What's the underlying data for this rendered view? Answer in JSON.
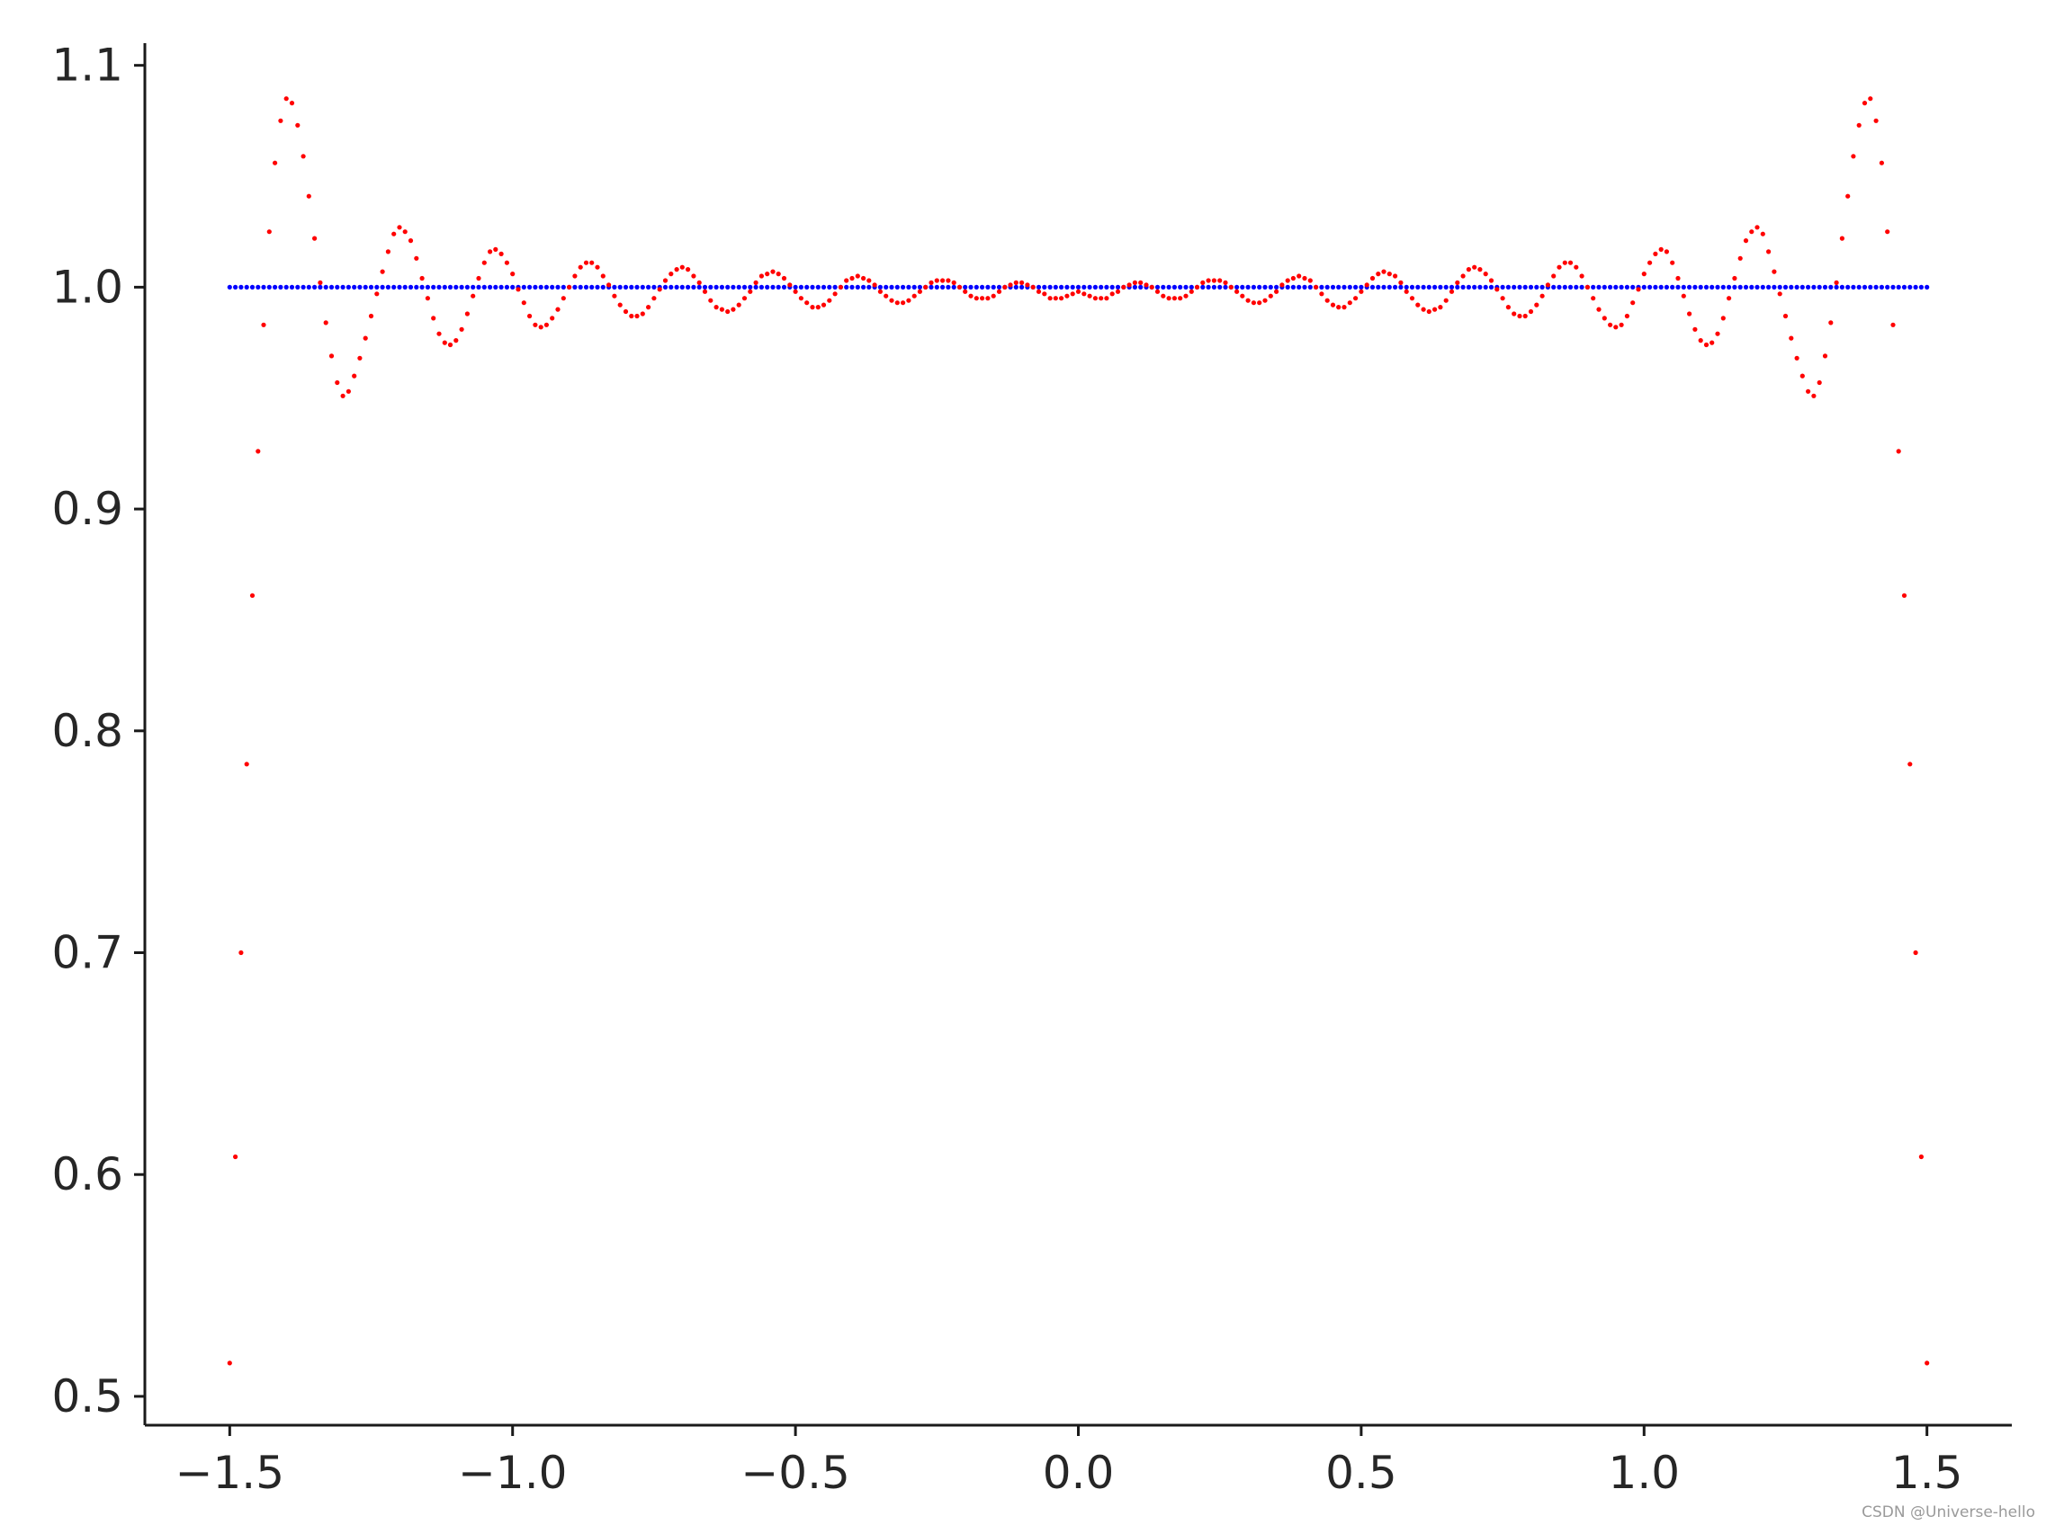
{
  "chart_data": {
    "type": "scatter",
    "title": "",
    "xlabel": "",
    "ylabel": "",
    "xlim": [
      -1.65,
      1.65
    ],
    "ylim": [
      0.487,
      1.11
    ],
    "xticks": [
      "−1.5",
      "−1.0",
      "−0.5",
      "0.0",
      "0.5",
      "1.0",
      "1.5"
    ],
    "xtick_values": [
      -1.5,
      -1.0,
      -0.5,
      0.0,
      0.5,
      1.0,
      1.5
    ],
    "yticks": [
      "0.5",
      "0.6",
      "0.7",
      "0.8",
      "0.9",
      "1.0",
      "1.1"
    ],
    "ytick_values": [
      0.5,
      0.6,
      0.7,
      0.8,
      0.9,
      1.0,
      1.1
    ],
    "grid": false,
    "legend": "none",
    "series": [
      {
        "color": "#0000ff",
        "marker": "point",
        "x_range": [
          -1.5,
          1.5
        ],
        "n_points": 301,
        "y_constant": 1.0
      },
      {
        "color": "#ff0000",
        "marker": "point",
        "x": [
          -1.5,
          -1.49,
          -1.48,
          -1.47,
          -1.46,
          -1.45,
          -1.44,
          -1.43,
          -1.42,
          -1.41,
          -1.4,
          -1.39,
          -1.38,
          -1.37,
          -1.36,
          -1.35,
          -1.34,
          -1.33,
          -1.32,
          -1.31,
          -1.3,
          -1.29,
          -1.28,
          -1.27,
          -1.26,
          -1.25,
          -1.24,
          -1.23,
          -1.22,
          -1.21,
          -1.2,
          -1.19,
          -1.18,
          -1.17,
          -1.16,
          -1.15,
          -1.14,
          -1.13,
          -1.12,
          -1.11,
          -1.1,
          -1.09,
          -1.08,
          -1.07,
          -1.06,
          -1.05,
          -1.04,
          -1.03,
          -1.02,
          -1.01,
          -1.0,
          -0.99,
          -0.98,
          -0.97,
          -0.96,
          -0.95,
          -0.94,
          -0.93,
          -0.92,
          -0.91,
          -0.9,
          -0.89,
          -0.88,
          -0.87,
          -0.86,
          -0.85,
          -0.84,
          -0.83,
          -0.82,
          -0.81,
          -0.8,
          -0.79,
          -0.78,
          -0.77,
          -0.76,
          -0.75,
          -0.74,
          -0.73,
          -0.72,
          -0.71,
          -0.7,
          -0.69,
          -0.68,
          -0.67,
          -0.66,
          -0.65,
          -0.64,
          -0.63,
          -0.62,
          -0.61,
          -0.6,
          -0.59,
          -0.58,
          -0.57,
          -0.56,
          -0.55,
          -0.54,
          -0.53,
          -0.52,
          -0.51,
          -0.5,
          -0.49,
          -0.48,
          -0.47,
          -0.46,
          -0.45,
          -0.44,
          -0.43,
          -0.42,
          -0.41,
          -0.4,
          -0.39,
          -0.38,
          -0.37,
          -0.36,
          -0.35,
          -0.34,
          -0.33,
          -0.32,
          -0.31,
          -0.3,
          -0.29,
          -0.28,
          -0.27,
          -0.26,
          -0.25,
          -0.24,
          -0.23,
          -0.22,
          -0.21,
          -0.2,
          -0.19,
          -0.18,
          -0.17,
          -0.16,
          -0.15,
          -0.14,
          -0.13,
          -0.12,
          -0.11,
          -0.1,
          -0.09,
          -0.08,
          -0.07,
          -0.06,
          -0.05,
          -0.04,
          -0.03,
          -0.02,
          -0.01,
          0.0,
          0.01,
          0.02,
          0.03,
          0.04,
          0.05,
          0.06,
          0.07,
          0.08,
          0.09,
          0.1,
          0.11,
          0.12,
          0.13,
          0.14,
          0.15,
          0.16,
          0.17,
          0.18,
          0.19,
          0.2,
          0.21,
          0.22,
          0.23,
          0.24,
          0.25,
          0.26,
          0.27,
          0.28,
          0.29,
          0.3,
          0.31,
          0.32,
          0.33,
          0.34,
          0.35,
          0.36,
          0.37,
          0.38,
          0.39,
          0.4,
          0.41,
          0.42,
          0.43,
          0.44,
          0.45,
          0.46,
          0.47,
          0.48,
          0.49,
          0.5,
          0.51,
          0.52,
          0.53,
          0.54,
          0.55,
          0.56,
          0.57,
          0.58,
          0.59,
          0.6,
          0.61,
          0.62,
          0.63,
          0.64,
          0.65,
          0.66,
          0.67,
          0.68,
          0.69,
          0.7,
          0.71,
          0.72,
          0.73,
          0.74,
          0.75,
          0.76,
          0.77,
          0.78,
          0.79,
          0.8,
          0.81,
          0.82,
          0.83,
          0.84,
          0.85,
          0.86,
          0.87,
          0.88,
          0.89,
          0.9,
          0.91,
          0.92,
          0.93,
          0.94,
          0.95,
          0.96,
          0.97,
          0.98,
          0.99,
          1.0,
          1.01,
          1.02,
          1.03,
          1.04,
          1.05,
          1.06,
          1.07,
          1.08,
          1.09,
          1.1,
          1.11,
          1.12,
          1.13,
          1.14,
          1.15,
          1.16,
          1.17,
          1.18,
          1.19,
          1.2,
          1.21,
          1.22,
          1.23,
          1.24,
          1.25,
          1.26,
          1.27,
          1.28,
          1.29,
          1.3,
          1.31,
          1.32,
          1.33,
          1.34,
          1.35,
          1.36,
          1.37,
          1.38,
          1.39,
          1.4,
          1.41,
          1.42,
          1.43,
          1.44,
          1.45,
          1.46,
          1.47,
          1.48,
          1.49,
          1.5
        ],
        "y": [
          0.515,
          0.608,
          0.7,
          0.785,
          0.861,
          0.926,
          0.983,
          1.025,
          1.056,
          1.075,
          1.085,
          1.083,
          1.073,
          1.059,
          1.041,
          1.022,
          1.002,
          0.984,
          0.969,
          0.957,
          0.951,
          0.953,
          0.96,
          0.968,
          0.977,
          0.987,
          0.997,
          1.007,
          1.016,
          1.024,
          1.027,
          1.025,
          1.021,
          1.013,
          1.004,
          0.995,
          0.986,
          0.979,
          0.975,
          0.974,
          0.976,
          0.981,
          0.988,
          0.996,
          1.004,
          1.011,
          1.016,
          1.017,
          1.015,
          1.011,
          1.006,
          0.999,
          0.993,
          0.987,
          0.983,
          0.982,
          0.983,
          0.986,
          0.99,
          0.995,
          1.0,
          1.005,
          1.009,
          1.011,
          1.011,
          1.009,
          1.005,
          1.001,
          0.996,
          0.992,
          0.989,
          0.987,
          0.987,
          0.988,
          0.991,
          0.995,
          0.999,
          1.003,
          1.006,
          1.008,
          1.009,
          1.008,
          1.005,
          1.002,
          0.998,
          0.994,
          0.991,
          0.99,
          0.989,
          0.99,
          0.992,
          0.995,
          0.998,
          1.002,
          1.005,
          1.006,
          1.007,
          1.006,
          1.004,
          1.001,
          0.998,
          0.995,
          0.993,
          0.991,
          0.991,
          0.992,
          0.994,
          0.997,
          1.0,
          1.003,
          1.004,
          1.005,
          1.004,
          1.003,
          1.001,
          0.998,
          0.996,
          0.994,
          0.993,
          0.993,
          0.994,
          0.996,
          0.998,
          1.0,
          1.002,
          1.003,
          1.003,
          1.003,
          1.002,
          1.0,
          0.998,
          0.996,
          0.995,
          0.995,
          0.995,
          0.996,
          0.998,
          1.0,
          1.001,
          1.002,
          1.002,
          1.001,
          1.0,
          0.998,
          0.997,
          0.995,
          0.995,
          0.995,
          0.996,
          0.997,
          0.998,
          0.997,
          0.996,
          0.995,
          0.995,
          0.995,
          0.997,
          0.998,
          1.0,
          1.001,
          1.002,
          1.002,
          1.001,
          1.0,
          0.998,
          0.996,
          0.995,
          0.995,
          0.995,
          0.996,
          0.998,
          1.0,
          1.002,
          1.003,
          1.003,
          1.003,
          1.002,
          1.0,
          0.998,
          0.996,
          0.994,
          0.993,
          0.993,
          0.994,
          0.996,
          0.998,
          1.001,
          1.003,
          1.004,
          1.005,
          1.004,
          1.003,
          1.0,
          0.997,
          0.994,
          0.992,
          0.991,
          0.991,
          0.993,
          0.995,
          0.998,
          1.001,
          1.004,
          1.006,
          1.007,
          1.006,
          1.005,
          1.002,
          0.998,
          0.995,
          0.992,
          0.99,
          0.989,
          0.99,
          0.991,
          0.994,
          0.998,
          1.002,
          1.005,
          1.008,
          1.009,
          1.008,
          1.006,
          1.003,
          0.999,
          0.995,
          0.991,
          0.988,
          0.987,
          0.987,
          0.989,
          0.992,
          0.996,
          1.001,
          1.005,
          1.009,
          1.011,
          1.011,
          1.009,
          1.005,
          1.0,
          0.995,
          0.99,
          0.986,
          0.983,
          0.982,
          0.983,
          0.987,
          0.993,
          0.999,
          1.006,
          1.011,
          1.015,
          1.017,
          1.016,
          1.011,
          1.004,
          0.996,
          0.988,
          0.981,
          0.976,
          0.974,
          0.975,
          0.979,
          0.986,
          0.995,
          1.004,
          1.013,
          1.021,
          1.025,
          1.027,
          1.024,
          1.016,
          1.007,
          0.997,
          0.987,
          0.977,
          0.968,
          0.96,
          0.953,
          0.951,
          0.957,
          0.969,
          0.984,
          1.002,
          1.022,
          1.041,
          1.059,
          1.073,
          1.083,
          1.085,
          1.075,
          1.056,
          1.025,
          0.983,
          0.926,
          0.861,
          0.785,
          0.7,
          0.608,
          0.515
        ]
      }
    ]
  },
  "watermark": "CSDN @Universe-hello"
}
